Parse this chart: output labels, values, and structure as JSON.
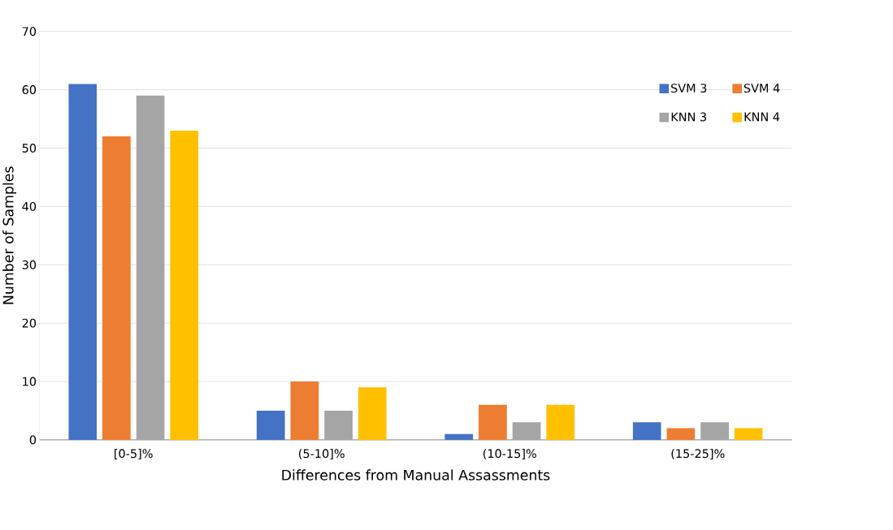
{
  "chart_data": {
    "type": "bar",
    "xlabel": "Differences from Manual Assassments",
    "ylabel": "Number of Samples",
    "categories": [
      "[0-5]%",
      "(5-10]%",
      "(10-15]%",
      "(15-25]%"
    ],
    "series": [
      {
        "name": "SVM 3",
        "color": "#4472c4",
        "values": [
          61,
          5,
          1,
          3
        ]
      },
      {
        "name": "SVM 4",
        "color": "#ed7d31",
        "values": [
          52,
          10,
          6,
          2
        ]
      },
      {
        "name": "KNN 3",
        "color": "#a5a5a5",
        "values": [
          59,
          5,
          3,
          3
        ]
      },
      {
        "name": "KNN 4",
        "color": "#ffc000",
        "values": [
          53,
          9,
          6,
          2
        ]
      }
    ],
    "ylim": [
      0,
      70
    ],
    "yticks": [
      0,
      10,
      20,
      30,
      40,
      50,
      60,
      70
    ],
    "grid": "y",
    "legend": "top right"
  }
}
